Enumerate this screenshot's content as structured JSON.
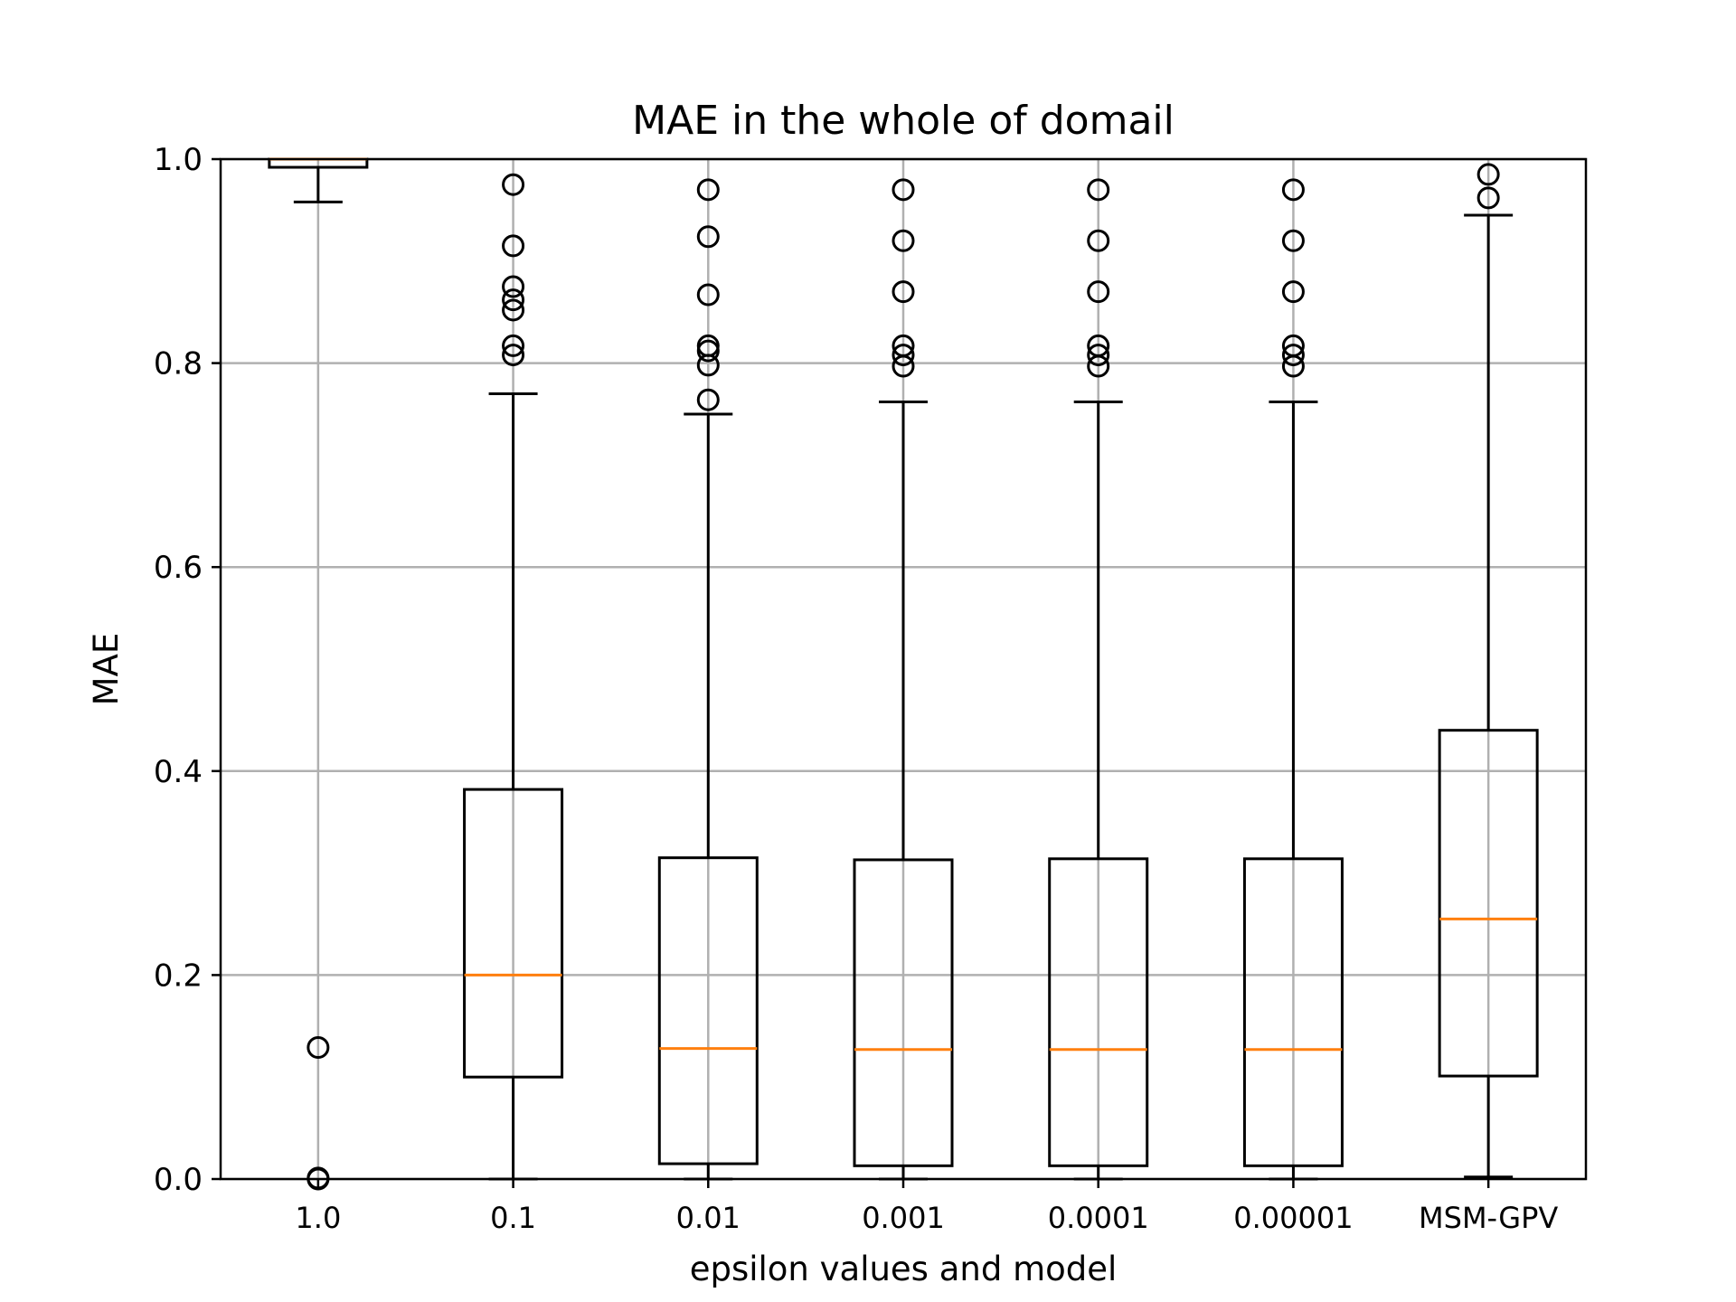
{
  "chart_data": {
    "type": "box",
    "title": "MAE in the whole of domail",
    "xlabel": "epsilon values and model",
    "ylabel": "MAE",
    "ylim": [
      0.0,
      1.0
    ],
    "yticks": [
      "0.0",
      "0.2",
      "0.4",
      "0.6",
      "0.8",
      "1.0"
    ],
    "grid": true,
    "categories": [
      "1.0",
      "0.1",
      "0.01",
      "0.001",
      "0.0001",
      "0.00001",
      "MSM-GPV"
    ],
    "boxes": [
      {
        "category": "1.0",
        "whisker_low": 0.958,
        "q1": 0.992,
        "median": 1.0,
        "q3": 1.0,
        "whisker_high": 1.0,
        "fliers": [
          0.129,
          0.001,
          0.0
        ]
      },
      {
        "category": "0.1",
        "whisker_low": 0.0,
        "q1": 0.1,
        "median": 0.2,
        "q3": 0.382,
        "whisker_high": 0.77,
        "fliers": [
          0.975,
          0.915,
          0.875,
          0.862,
          0.852,
          0.817,
          0.808
        ]
      },
      {
        "category": "0.01",
        "whisker_low": 0.0,
        "q1": 0.015,
        "median": 0.128,
        "q3": 0.315,
        "whisker_high": 0.75,
        "fliers": [
          0.97,
          0.924,
          0.867,
          0.817,
          0.812,
          0.798,
          0.764
        ]
      },
      {
        "category": "0.001",
        "whisker_low": 0.0,
        "q1": 0.013,
        "median": 0.127,
        "q3": 0.313,
        "whisker_high": 0.762,
        "fliers": [
          0.97,
          0.92,
          0.87,
          0.817,
          0.808,
          0.797
        ]
      },
      {
        "category": "0.0001",
        "whisker_low": 0.0,
        "q1": 0.013,
        "median": 0.127,
        "q3": 0.314,
        "whisker_high": 0.762,
        "fliers": [
          0.97,
          0.92,
          0.87,
          0.817,
          0.808,
          0.797
        ]
      },
      {
        "category": "0.00001",
        "whisker_low": 0.0,
        "q1": 0.013,
        "median": 0.127,
        "q3": 0.314,
        "whisker_high": 0.762,
        "fliers": [
          0.97,
          0.92,
          0.87,
          0.817,
          0.808,
          0.797
        ]
      },
      {
        "category": "MSM-GPV",
        "whisker_low": 0.002,
        "q1": 0.101,
        "median": 0.255,
        "q3": 0.44,
        "whisker_high": 0.945,
        "fliers": [
          0.985,
          0.962
        ]
      }
    ],
    "colors": {
      "box": "#000000",
      "median": "#ff7f0e",
      "grid": "#b0b0b0"
    }
  }
}
